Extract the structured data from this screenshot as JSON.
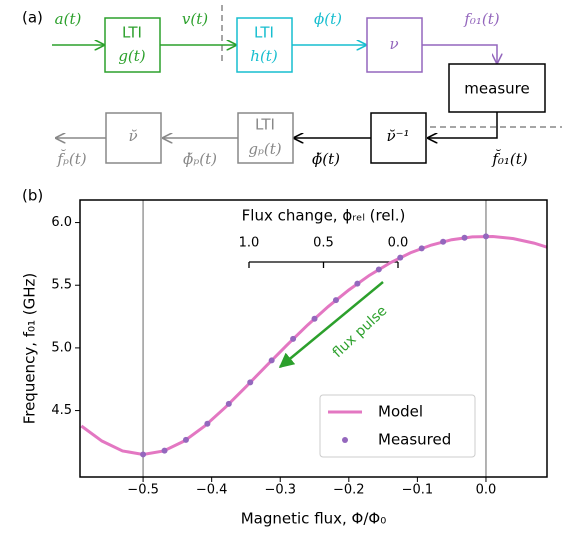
{
  "diagram": {
    "panel_label": "(a)",
    "signals": [
      "a(t)",
      "v(t)",
      "ϕ(t)",
      "f₀₁(t)",
      "f̆₀₁(t)",
      "ϕ̆(t)",
      "ϕ̆ₚ(t)",
      "f̆ₚ(t)"
    ],
    "blocks": [
      {
        "title": "LTI",
        "function": "g(t)"
      },
      {
        "title": "LTI",
        "function": "h(t)"
      },
      {
        "title": "ν"
      },
      {
        "title": "measure"
      },
      {
        "title": "ν̆⁻¹"
      },
      {
        "title": "LTI",
        "function": "gₚ(t)"
      },
      {
        "title": "ν̆"
      }
    ]
  },
  "chart_data": {
    "type": "line",
    "panel_label": "(b)",
    "x_label": "Magnetic flux, Φ/Φ₀",
    "y_label": "Frequency, f₀₁ (GHz)",
    "xlim": [
      -0.592,
      0.089
    ],
    "ylim": [
      3.97,
      6.18
    ],
    "xticks": [
      {
        "value": -0.5,
        "label": "−0.5"
      },
      {
        "value": -0.4,
        "label": "−0.4"
      },
      {
        "value": -0.3,
        "label": "−0.3"
      },
      {
        "value": -0.2,
        "label": "−0.2"
      },
      {
        "value": -0.1,
        "label": "−0.1"
      },
      {
        "value": 0.0,
        "label": "0.0"
      }
    ],
    "yticks": [
      {
        "value": 4.5,
        "label": "4.5"
      },
      {
        "value": 5.0,
        "label": "5.0"
      },
      {
        "value": 5.5,
        "label": "5.5"
      },
      {
        "value": 6.0,
        "label": "6.0"
      }
    ],
    "vlines": [
      -0.5,
      0.0
    ],
    "x2_label": "Flux change, ϕᵣₑₗ (rel.)",
    "x2lim": [
      1.0,
      0.0
    ],
    "x2ticks": [
      {
        "value": 1.0,
        "label": "1.0"
      },
      {
        "value": 0.5,
        "label": "0.5"
      },
      {
        "value": 0.0,
        "label": "0.0"
      }
    ],
    "annotation": "flux pulse",
    "annotation_color": "#2ca02c",
    "legend": "lower right",
    "series": [
      {
        "name": "Model",
        "style": "line",
        "color": "#e377c2",
        "x": [
          -0.59,
          -0.56,
          -0.53,
          -0.5,
          -0.47,
          -0.44,
          -0.41,
          -0.38,
          -0.35,
          -0.32,
          -0.29,
          -0.26,
          -0.23,
          -0.2,
          -0.17,
          -0.14,
          -0.11,
          -0.08,
          -0.05,
          -0.02,
          0.01,
          0.04,
          0.07,
          0.09
        ],
        "values": [
          4.377,
          4.257,
          4.178,
          4.15,
          4.178,
          4.257,
          4.377,
          4.526,
          4.69,
          4.858,
          5.024,
          5.183,
          5.33,
          5.462,
          5.579,
          5.678,
          5.759,
          5.82,
          5.863,
          5.886,
          5.889,
          5.872,
          5.836,
          5.802
        ]
      },
      {
        "name": "Measured",
        "style": "markers",
        "color": "#9467bd",
        "x": [
          -0.5,
          -0.46875,
          -0.4375,
          -0.40625,
          -0.375,
          -0.34375,
          -0.3125,
          -0.28125,
          -0.25,
          -0.21875,
          -0.1875,
          -0.15625,
          -0.125,
          -0.09375,
          -0.0625,
          -0.03125,
          0.0
        ],
        "values": [
          4.15,
          4.18,
          4.266,
          4.395,
          4.553,
          4.725,
          4.9,
          5.072,
          5.233,
          5.381,
          5.513,
          5.626,
          5.72,
          5.794,
          5.847,
          5.879,
          5.89
        ]
      }
    ]
  }
}
